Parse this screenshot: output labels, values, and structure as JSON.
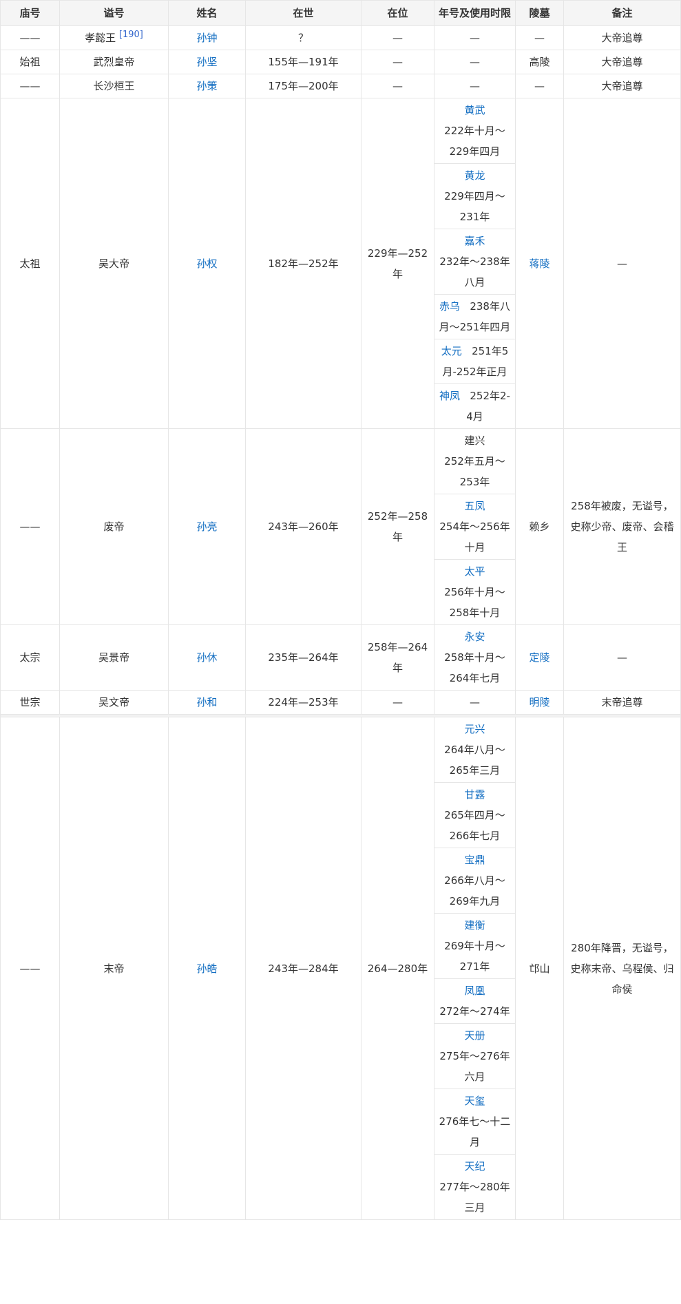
{
  "header": [
    "庙号",
    "谥号",
    "姓名",
    "在世",
    "在位",
    "年号及使用时限",
    "陵墓",
    "备注"
  ],
  "colors": {
    "link": "#136ec2",
    "text": "#333333",
    "border": "#e6e6e6",
    "header_bg": "#f5f5f5"
  },
  "rows": [
    {
      "temple": "——",
      "posthumous": "孝懿王",
      "ref": "[190]",
      "name": "孙钟",
      "lived": "？",
      "reign": "—",
      "era_text": "—",
      "tomb": "—",
      "note": "大帝追尊"
    },
    {
      "temple": "始祖",
      "posthumous": "武烈皇帝",
      "name": "孙坚",
      "lived": "155年—191年",
      "reign": "—",
      "era_text": "—",
      "tomb": "高陵",
      "note": "大帝追尊"
    },
    {
      "temple": "——",
      "posthumous": "长沙桓王",
      "name": "孙策",
      "lived": "175年—200年",
      "reign": "—",
      "era_text": "—",
      "tomb": "—",
      "note": "大帝追尊"
    },
    {
      "temple": "太祖",
      "posthumous": "吴大帝",
      "name": "孙权",
      "lived": "182年—252年",
      "reign": "229年—252年",
      "eras": [
        {
          "name": "黄武",
          "period": "222年十月～229年四月"
        },
        {
          "name": "黄龙",
          "period": "229年四月～231年"
        },
        {
          "name": "嘉禾",
          "period": "232年～238年八月"
        },
        {
          "name": "赤乌",
          "period": "238年八月～251年四月"
        },
        {
          "name": "太元",
          "period": "251年5月-252年正月"
        },
        {
          "name": "神凤",
          "period": "252年2-4月"
        }
      ],
      "tomb": "蒋陵",
      "note": "—"
    },
    {
      "temple": "——",
      "posthumous": "废帝",
      "name": "孙亮",
      "lived": "243年—260年",
      "reign": "252年—258年",
      "eras": [
        {
          "name": "建兴",
          "period": "252年五月～253年"
        },
        {
          "name": "五凤",
          "period": "254年～256年十月"
        },
        {
          "name": "太平",
          "period": "256年十月～258年十月"
        }
      ],
      "tomb": "赖乡",
      "note": "258年被废，无谥号，史称少帝、废帝、会稽王"
    },
    {
      "temple": "太宗",
      "posthumous": "吴景帝",
      "name": "孙休",
      "lived": "235年—264年",
      "reign": "258年—264年",
      "eras": [
        {
          "name": "永安",
          "period": "258年十月～264年七月"
        }
      ],
      "tomb": "定陵",
      "note": "—"
    },
    {
      "temple": "世宗",
      "posthumous": "吴文帝",
      "name": "孙和",
      "lived": "224年—253年",
      "reign": "—",
      "era_text": "—",
      "tomb": "明陵",
      "note": "末帝追尊"
    },
    {
      "temple": "——",
      "posthumous": "末帝",
      "name": "孙皓",
      "lived": "243年—284年",
      "reign": "264—280年",
      "eras": [
        {
          "name": "元兴",
          "period": "264年八月～265年三月"
        },
        {
          "name": "甘露",
          "period": "265年四月～266年七月"
        },
        {
          "name": "宝鼎",
          "period": "266年八月～269年九月"
        },
        {
          "name": "建衡",
          "period": "269年十月～271年"
        },
        {
          "name": "凤凰",
          "period": "272年～274年"
        },
        {
          "name": "天册",
          "period": "275年～276年六月"
        },
        {
          "name": "天玺",
          "period": "276年七～十二月"
        },
        {
          "name": "天纪",
          "period": "277年～280年三月"
        }
      ],
      "tomb": "邙山",
      "note": "280年降晋，无谥号，史称末帝、乌程侯、归命侯"
    }
  ]
}
